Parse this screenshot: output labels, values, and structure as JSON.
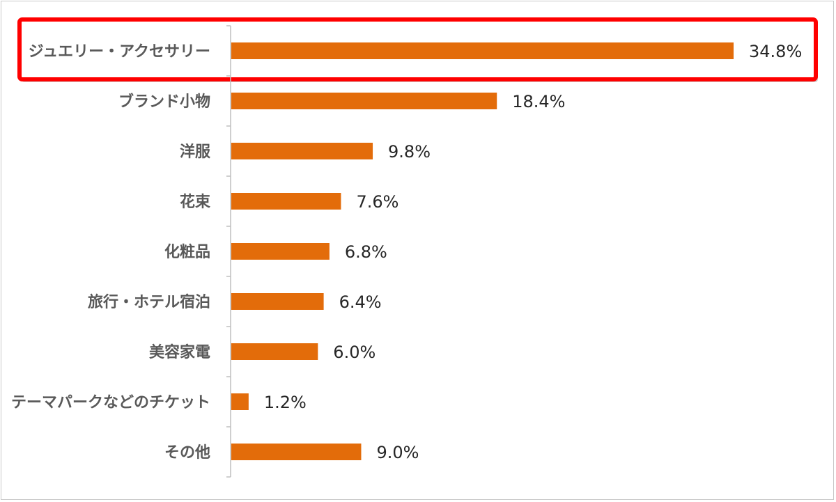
{
  "chart_data": {
    "type": "bar",
    "orientation": "horizontal",
    "categories": [
      "ジュエリー・アクセサリー",
      "ブランド小物",
      "洋服",
      "花束",
      "化粧品",
      "旅行・ホテル宿泊",
      "美容家電",
      "テーマパークなどのチケット",
      "その他"
    ],
    "values": [
      34.8,
      18.4,
      9.8,
      7.6,
      6.8,
      6.4,
      6.0,
      1.2,
      9.0
    ],
    "value_labels": [
      "34.8%",
      "18.4%",
      "9.8%",
      "7.6%",
      "6.8%",
      "6.4%",
      "6.0%",
      "1.2%",
      "9.0%"
    ],
    "title": "",
    "xlabel": "",
    "ylabel": "",
    "xlim": [
      0,
      40
    ],
    "grid": false,
    "highlighted_category": "ジュエリー・アクセサリー"
  },
  "colors": {
    "bar": "#E36C0A",
    "highlight_border": "#FF0000",
    "axis": "#BFBFBF",
    "category_text": "#595959",
    "value_text": "#262626"
  }
}
